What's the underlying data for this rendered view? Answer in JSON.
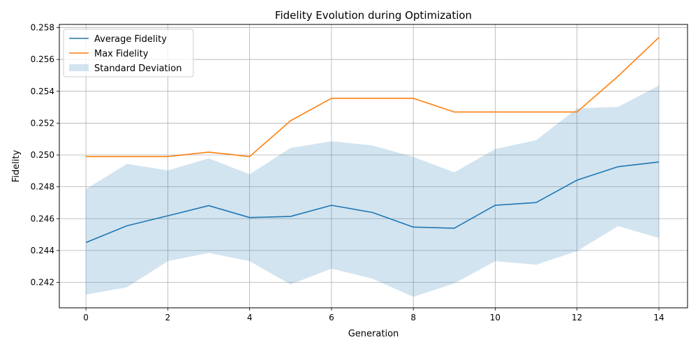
{
  "chart_data": {
    "type": "line",
    "title": "Fidelity Evolution during Optimization",
    "xlabel": "Generation",
    "ylabel": "Fidelity",
    "x": [
      0,
      1,
      2,
      3,
      4,
      5,
      6,
      7,
      8,
      9,
      10,
      11,
      12,
      13,
      14
    ],
    "xlim": [
      -0.65,
      14.7
    ],
    "ylim": [
      0.2404,
      0.2582
    ],
    "xticks": [
      0,
      2,
      4,
      6,
      8,
      10,
      12,
      14
    ],
    "yticks": [
      0.242,
      0.244,
      0.246,
      0.248,
      0.25,
      0.252,
      0.254,
      0.256,
      0.258
    ],
    "grid": true,
    "legend_position": "upper-left",
    "series": [
      {
        "name": "Average Fidelity",
        "color": "#1f77b4",
        "values": [
          0.2445,
          0.24555,
          0.24618,
          0.24682,
          0.24607,
          0.24614,
          0.24684,
          0.24639,
          0.24547,
          0.2454,
          0.24684,
          0.24701,
          0.24842,
          0.24926,
          0.24956
        ]
      },
      {
        "name": "Max Fidelity",
        "color": "#ff7f0e",
        "values": [
          0.2499,
          0.2499,
          0.2499,
          0.25018,
          0.2499,
          0.25215,
          0.25356,
          0.25356,
          0.25356,
          0.2527,
          0.2527,
          0.2527,
          0.2527,
          0.25494,
          0.25738
        ]
      }
    ],
    "band": {
      "name": "Standard Deviation",
      "color": "#1f77b4",
      "opacity": 0.2,
      "upper": [
        0.24785,
        0.24944,
        0.24903,
        0.24979,
        0.24879,
        0.25044,
        0.25086,
        0.2506,
        0.24988,
        0.24891,
        0.25037,
        0.25093,
        0.25292,
        0.25302,
        0.25436
      ],
      "lower": [
        0.24123,
        0.24169,
        0.24333,
        0.24385,
        0.24333,
        0.24187,
        0.24286,
        0.24223,
        0.24109,
        0.24193,
        0.24333,
        0.24311,
        0.24396,
        0.24553,
        0.24479
      ]
    }
  }
}
